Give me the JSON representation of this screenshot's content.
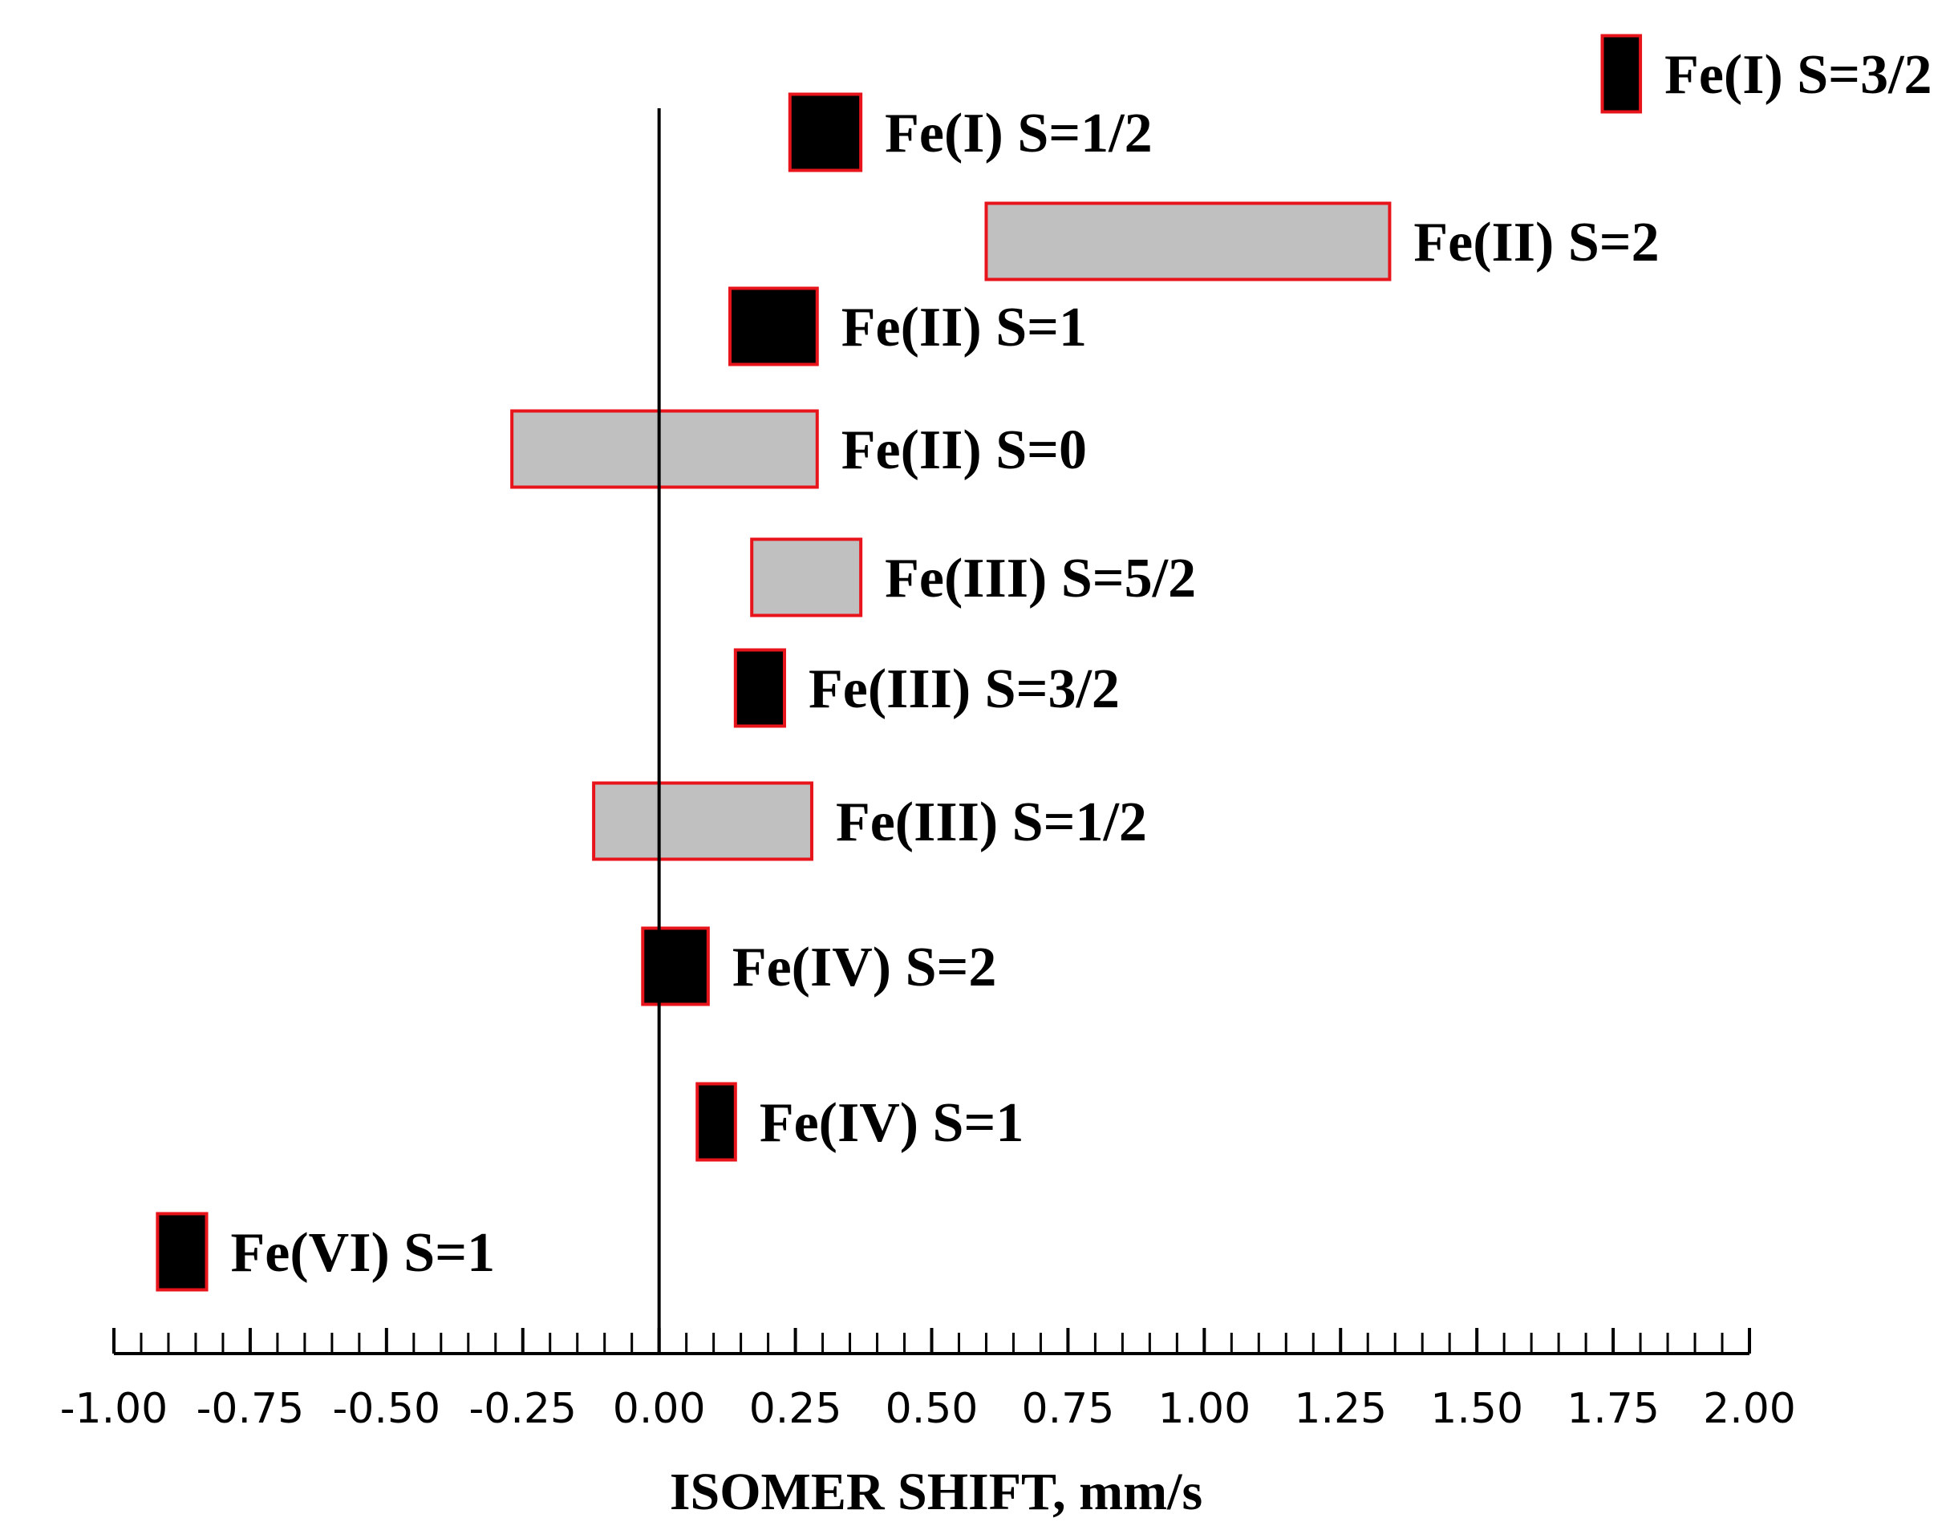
{
  "chart_data": {
    "type": "range-bar",
    "xlabel": "ISOMER SHIFT,  mm/s",
    "xlim": [
      -1.0,
      2.0
    ],
    "x_ticks": [
      "-1.00",
      "-0.75",
      "-0.50",
      "-0.25",
      "0.00",
      "0.25",
      "0.50",
      "0.75",
      "1.00",
      "1.25",
      "1.50",
      "1.75",
      "2.00"
    ],
    "reference_line_x": 0.0,
    "grid": false,
    "colors": {
      "dark_fill": "#000000",
      "light_fill": "#c0c0c0",
      "border": "#e8141c",
      "axis": "#000000"
    },
    "ranges": [
      {
        "label": "Fe(I) S=3/2",
        "min": 1.73,
        "max": 1.8,
        "fill": "dark"
      },
      {
        "label": "Fe(I) S=1/2",
        "min": 0.24,
        "max": 0.37,
        "fill": "dark"
      },
      {
        "label": "Fe(II) S=2",
        "min": 0.6,
        "max": 1.34,
        "fill": "light"
      },
      {
        "label": "Fe(II) S=1",
        "min": 0.13,
        "max": 0.29,
        "fill": "dark"
      },
      {
        "label": "Fe(II) S=0",
        "min": -0.27,
        "max": 0.29,
        "fill": "light"
      },
      {
        "label": "Fe(III) S=5/2",
        "min": 0.17,
        "max": 0.37,
        "fill": "light"
      },
      {
        "label": "Fe(III) S=3/2",
        "min": 0.14,
        "max": 0.23,
        "fill": "dark"
      },
      {
        "label": "Fe(III) S=1/2",
        "min": -0.12,
        "max": 0.28,
        "fill": "light"
      },
      {
        "label": "Fe(IV) S=2",
        "min": -0.03,
        "max": 0.09,
        "fill": "dark"
      },
      {
        "label": "Fe(IV) S=1",
        "min": 0.07,
        "max": 0.14,
        "fill": "dark"
      },
      {
        "label": "Fe(VI) S=1",
        "min": -0.92,
        "max": -0.83,
        "fill": "dark"
      }
    ]
  }
}
